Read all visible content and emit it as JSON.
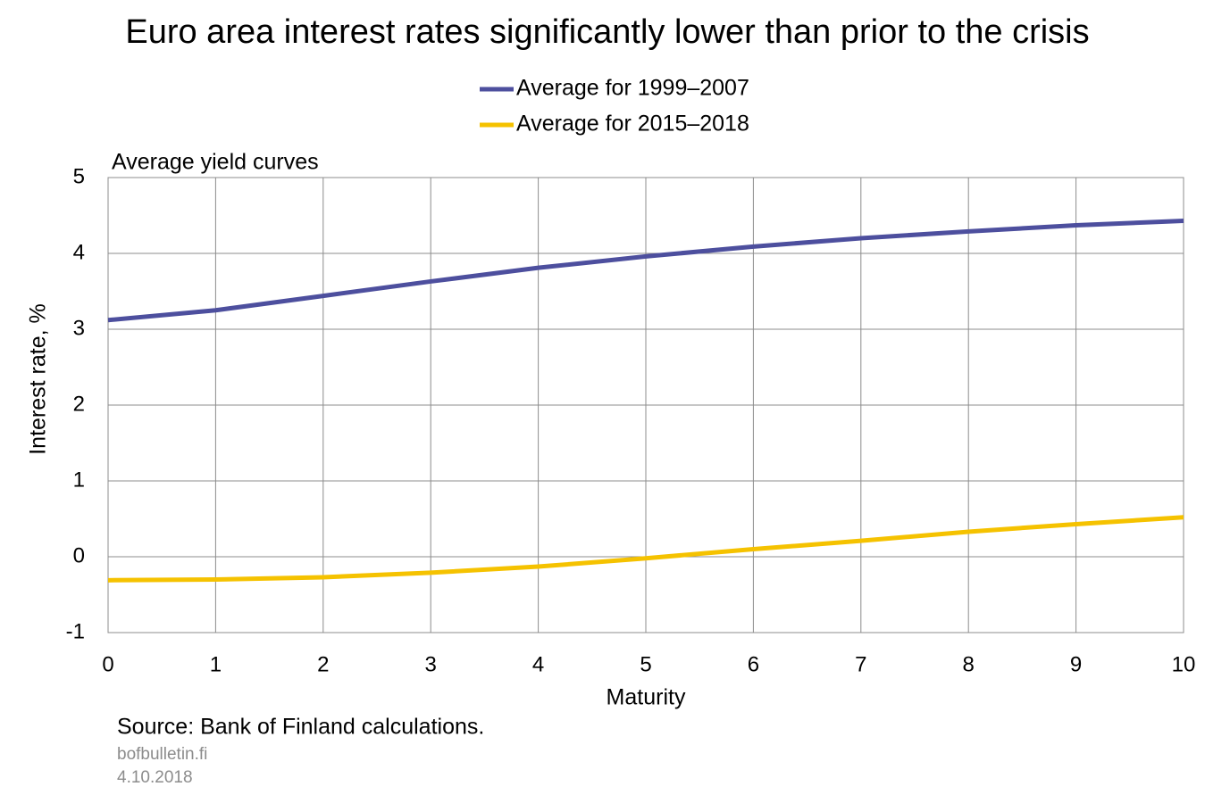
{
  "chart_data": {
    "type": "line",
    "title": "Euro area interest rates significantly lower than prior to the crisis",
    "subtitle": "Average yield curves",
    "x_label": "Maturity",
    "y_label": "Interest rate, %",
    "x": [
      0,
      1,
      2,
      3,
      4,
      5,
      6,
      7,
      8,
      9,
      10
    ],
    "series": [
      {
        "name": "Average for 1999–2007",
        "color": "#4d4f9e",
        "values": [
          3.12,
          3.25,
          3.44,
          3.63,
          3.81,
          3.96,
          4.09,
          4.2,
          4.29,
          4.37,
          4.43
        ]
      },
      {
        "name": "Average for 2015–2018",
        "color": "#f5c200",
        "values": [
          -0.31,
          -0.3,
          -0.27,
          -0.21,
          -0.13,
          -0.02,
          0.1,
          0.21,
          0.33,
          0.43,
          0.52
        ]
      }
    ],
    "xlim": [
      0,
      10
    ],
    "xticks": [
      0,
      1,
      2,
      3,
      4,
      5,
      6,
      7,
      8,
      9,
      10
    ],
    "ylim": [
      -1,
      5
    ],
    "yticks": [
      -1,
      0,
      1,
      2,
      3,
      4,
      5
    ],
    "grid": true,
    "legend": "top",
    "source": "Source: Bank of Finland calculations.",
    "footer": [
      "bofbulletin.fi",
      "4.10.2018"
    ]
  }
}
